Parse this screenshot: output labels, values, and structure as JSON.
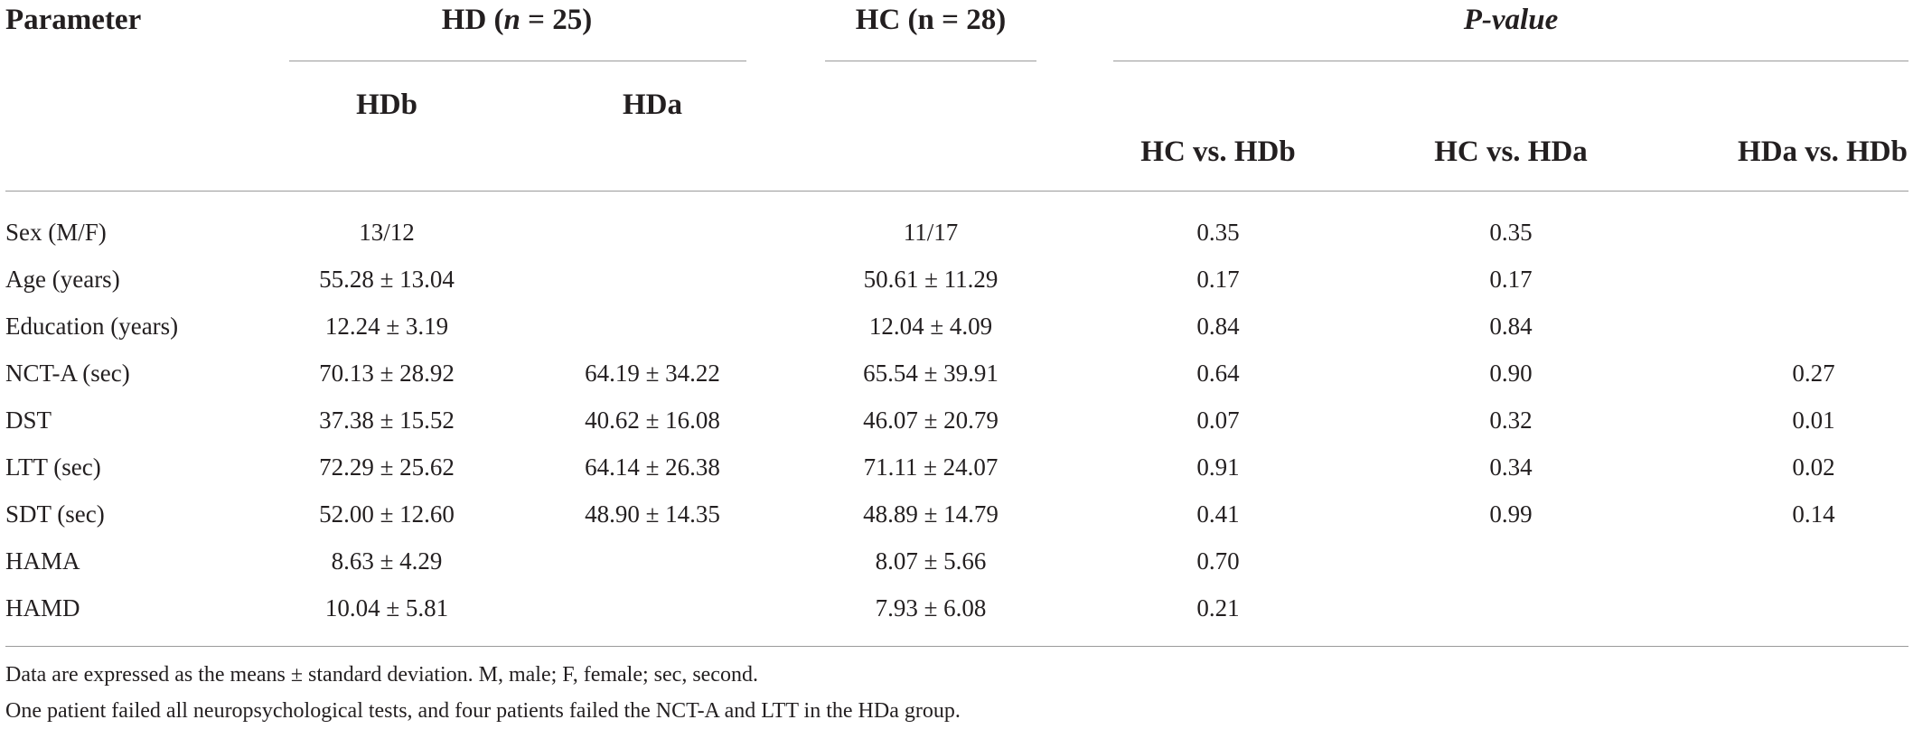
{
  "table": {
    "header": {
      "parameter": "Parameter",
      "hd_group": {
        "prefix": "HD (",
        "n_italic": "n",
        "suffix": " = 25)"
      },
      "hc_group": "HC (n = 28)",
      "p_value": "P-value",
      "hdb": "HDb",
      "hda": "HDa",
      "hc_vs_hdb": "HC vs. HDb",
      "hc_vs_hda": "HC vs. HDa",
      "hda_vs_hdb": "HDa vs. HDb"
    },
    "rows": [
      {
        "parameter": "Sex (M/F)",
        "hdb": "13/12",
        "hda": "",
        "hc": "11/17",
        "p_hc_hdb": "0.35",
        "p_hc_hda": "0.35",
        "p_hda_hdb": ""
      },
      {
        "parameter": "Age (years)",
        "hdb": "55.28 ± 13.04",
        "hda": "",
        "hc": "50.61 ± 11.29",
        "p_hc_hdb": "0.17",
        "p_hc_hda": "0.17",
        "p_hda_hdb": ""
      },
      {
        "parameter": "Education (years)",
        "hdb": "12.24 ± 3.19",
        "hda": "",
        "hc": "12.04 ± 4.09",
        "p_hc_hdb": "0.84",
        "p_hc_hda": "0.84",
        "p_hda_hdb": ""
      },
      {
        "parameter": "NCT-A (sec)",
        "hdb": "70.13 ± 28.92",
        "hda": "64.19 ± 34.22",
        "hc": "65.54 ± 39.91",
        "p_hc_hdb": "0.64",
        "p_hc_hda": "0.90",
        "p_hda_hdb": "0.27"
      },
      {
        "parameter": "DST",
        "hdb": "37.38 ± 15.52",
        "hda": "40.62 ± 16.08",
        "hc": "46.07 ± 20.79",
        "p_hc_hdb": "0.07",
        "p_hc_hda": "0.32",
        "p_hda_hdb": "0.01"
      },
      {
        "parameter": "LTT (sec)",
        "hdb": "72.29 ± 25.62",
        "hda": "64.14 ± 26.38",
        "hc": "71.11 ± 24.07",
        "p_hc_hdb": "0.91",
        "p_hc_hda": "0.34",
        "p_hda_hdb": "0.02"
      },
      {
        "parameter": "SDT (sec)",
        "hdb": "52.00 ± 12.60",
        "hda": "48.90 ± 14.35",
        "hc": "48.89 ± 14.79",
        "p_hc_hdb": "0.41",
        "p_hc_hda": "0.99",
        "p_hda_hdb": "0.14"
      },
      {
        "parameter": "HAMA",
        "hdb": "8.63 ± 4.29",
        "hda": "",
        "hc": "8.07 ± 5.66",
        "p_hc_hdb": "0.70",
        "p_hc_hda": "",
        "p_hda_hdb": ""
      },
      {
        "parameter": "HAMD",
        "hdb": "10.04 ± 5.81",
        "hda": "",
        "hc": "7.93 ± 6.08",
        "p_hc_hdb": "0.21",
        "p_hc_hda": "",
        "p_hda_hdb": ""
      }
    ]
  },
  "footnotes": [
    "Data are expressed as the means ± standard deviation. M, male; F, female; sec, second.",
    "One patient failed all neuropsychological tests, and four patients failed the NCT-A and LTT in the HDa group."
  ]
}
